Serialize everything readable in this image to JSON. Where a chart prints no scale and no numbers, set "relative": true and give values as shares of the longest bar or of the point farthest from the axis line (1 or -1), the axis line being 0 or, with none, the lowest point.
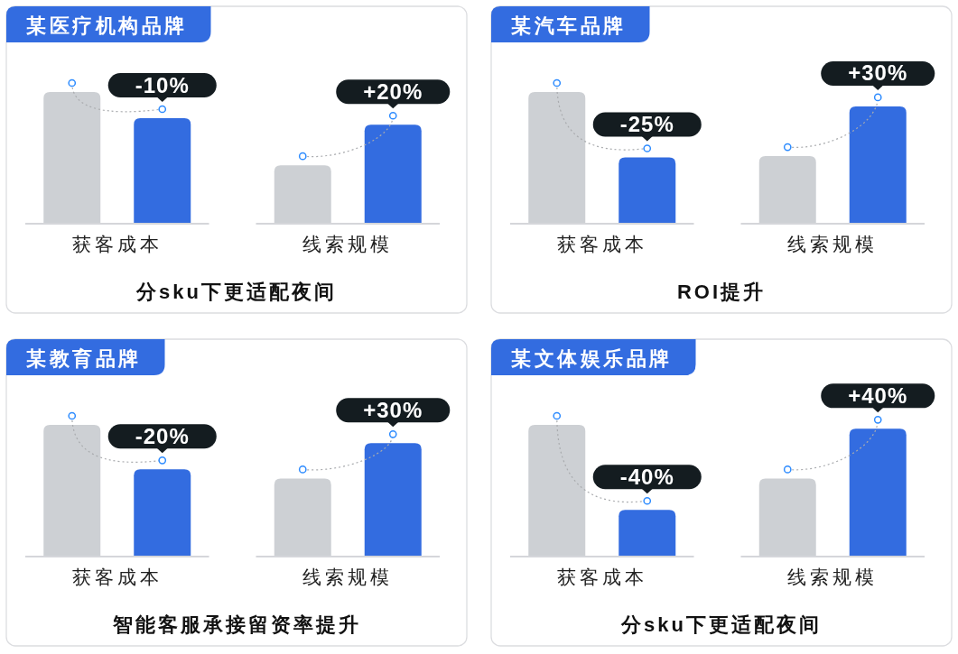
{
  "chart_data": [
    {
      "type": "bar",
      "title": "某医疗机构品牌",
      "categories": [
        "获客成本",
        "线索规模"
      ],
      "relative": true,
      "series": [
        {
          "color": "#cdd0d4",
          "values": [
            1,
            0.44
          ]
        },
        {
          "color": "#336ce0",
          "values": [
            0.8,
            0.75
          ]
        }
      ],
      "annotations": [
        "-10%",
        "+20%",
        "分sku下更适配夜间"
      ]
    },
    {
      "type": "bar",
      "title": "某汽车品牌",
      "categories": [
        "获客成本",
        "线索规模"
      ],
      "relative": true,
      "series": [
        {
          "color": "#cdd0d4",
          "values": [
            1,
            0.51
          ]
        },
        {
          "color": "#336ce0",
          "values": [
            0.5,
            0.89
          ]
        }
      ],
      "annotations": [
        "-25%",
        "+30%",
        "ROI提升"
      ]
    },
    {
      "type": "bar",
      "title": "某教育品牌",
      "categories": [
        "获客成本",
        "线索规模"
      ],
      "relative": true,
      "series": [
        {
          "color": "#cdd0d4",
          "values": [
            1,
            0.59
          ]
        },
        {
          "color": "#336ce0",
          "values": [
            0.66,
            0.86
          ]
        }
      ],
      "annotations": [
        "-20%",
        "+30%",
        "智能客服承接留资率提升"
      ]
    },
    {
      "type": "bar",
      "title": "某文体娱乐品牌",
      "categories": [
        "获客成本",
        "线索规模"
      ],
      "relative": true,
      "series": [
        {
          "color": "#cdd0d4",
          "values": [
            1,
            0.59
          ]
        },
        {
          "color": "#336ce0",
          "values": [
            0.35,
            0.97
          ]
        }
      ],
      "annotations": [
        "-40%",
        "+40%",
        "分sku下更适配夜间"
      ]
    }
  ]
}
